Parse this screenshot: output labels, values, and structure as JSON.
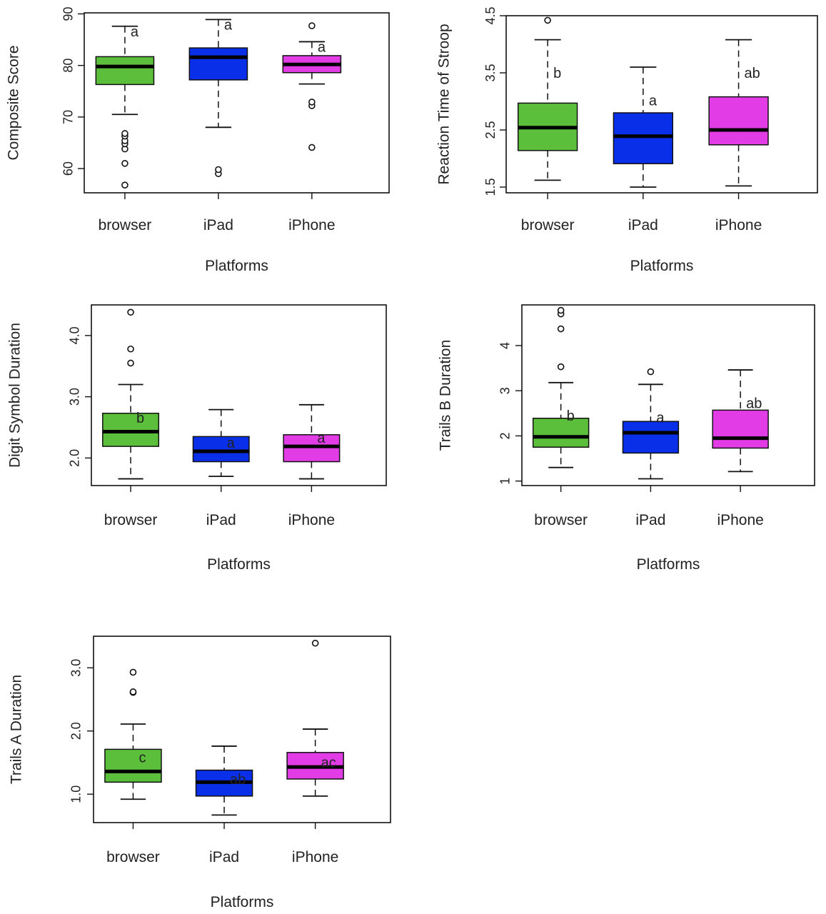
{
  "figure": {
    "colors": {
      "browser": "#5cbf3c",
      "iPad": "#0a2fe8",
      "iPhone": "#e23ce6"
    }
  },
  "chart_data": [
    {
      "type": "box",
      "id": "composite",
      "xlabel": "Platforms",
      "ylabel": "Composite Score",
      "categories": [
        "browser",
        "iPad",
        "iPhone"
      ],
      "ylim": [
        55.3,
        90.2
      ],
      "yticks": [
        60,
        70,
        80,
        90
      ],
      "yticklabels": [
        "60",
        "70",
        "80",
        "90"
      ],
      "boxes": [
        {
          "whisker_low": 70.5,
          "q1": 76.3,
          "median": 79.8,
          "q3": 81.7,
          "whisker_high": 87.6,
          "outliers": [
            56.8,
            61.0,
            63.8,
            64.8,
            65.4,
            66.3,
            66.8
          ],
          "letter": "a"
        },
        {
          "whisker_low": 68.0,
          "q1": 77.2,
          "median": 81.6,
          "q3": 83.4,
          "whisker_high": 88.9,
          "outliers": [
            59.0,
            59.8
          ],
          "letter": "a"
        },
        {
          "whisker_low": 76.4,
          "q1": 78.6,
          "median": 80.2,
          "q3": 81.9,
          "whisker_high": 84.6,
          "outliers": [
            64.1,
            72.2,
            72.9,
            87.7
          ],
          "letter": "a"
        }
      ],
      "grid": false,
      "legend": "none"
    },
    {
      "type": "box",
      "id": "stroop",
      "xlabel": "Platforms",
      "ylabel": "Reaction Time of Stroop",
      "categories": [
        "browser",
        "iPad",
        "iPhone"
      ],
      "ylim": [
        1.4,
        4.5
      ],
      "yticks": [
        1.5,
        2.5,
        3.5,
        4.5
      ],
      "yticklabels": [
        "1.5",
        "2.5",
        "3.5",
        "4.5"
      ],
      "boxes": [
        {
          "whisker_low": 1.62,
          "q1": 2.14,
          "median": 2.54,
          "q3": 2.97,
          "whisker_high": 4.08,
          "outliers": [
            4.42
          ],
          "letter": "b"
        },
        {
          "whisker_low": 1.5,
          "q1": 1.91,
          "median": 2.39,
          "q3": 2.8,
          "whisker_high": 3.6,
          "outliers": [],
          "letter": "a"
        },
        {
          "whisker_low": 1.52,
          "q1": 2.24,
          "median": 2.5,
          "q3": 3.08,
          "whisker_high": 4.08,
          "outliers": [],
          "letter": "ab"
        }
      ],
      "grid": false,
      "legend": "none"
    },
    {
      "type": "box",
      "id": "digit",
      "xlabel": "Platforms",
      "ylabel": "Digit Symbol Duration",
      "categories": [
        "browser",
        "iPad",
        "iPhone"
      ],
      "ylim": [
        1.55,
        4.5
      ],
      "yticks": [
        2.0,
        3.0,
        4.0
      ],
      "yticklabels": [
        "2.0",
        "3.0",
        "4.0"
      ],
      "boxes": [
        {
          "whisker_low": 1.66,
          "q1": 2.19,
          "median": 2.43,
          "q3": 2.73,
          "whisker_high": 3.2,
          "outliers": [
            3.55,
            3.78,
            4.38
          ],
          "letter": "b"
        },
        {
          "whisker_low": 1.7,
          "q1": 1.94,
          "median": 2.11,
          "q3": 2.35,
          "whisker_high": 2.79,
          "outliers": [],
          "letter": "a"
        },
        {
          "whisker_low": 1.66,
          "q1": 1.94,
          "median": 2.19,
          "q3": 2.38,
          "whisker_high": 2.87,
          "outliers": [],
          "letter": "a"
        }
      ],
      "grid": false,
      "legend": "none"
    },
    {
      "type": "box",
      "id": "trailsb",
      "xlabel": "Platforms",
      "ylabel": "Trails B Duration",
      "categories": [
        "browser",
        "iPad",
        "iPhone"
      ],
      "ylim": [
        0.9,
        4.9
      ],
      "yticks": [
        1,
        2,
        3,
        4
      ],
      "yticklabels": [
        "1",
        "2",
        "3",
        "4"
      ],
      "boxes": [
        {
          "whisker_low": 1.3,
          "q1": 1.75,
          "median": 1.98,
          "q3": 2.39,
          "whisker_high": 3.18,
          "outliers": [
            3.53,
            4.37,
            4.7,
            4.78
          ],
          "letter": "b"
        },
        {
          "whisker_low": 1.05,
          "q1": 1.62,
          "median": 2.07,
          "q3": 2.32,
          "whisker_high": 3.14,
          "outliers": [
            3.42
          ],
          "letter": "a"
        },
        {
          "whisker_low": 1.21,
          "q1": 1.73,
          "median": 1.95,
          "q3": 2.57,
          "whisker_high": 3.46,
          "outliers": [],
          "letter": "ab"
        }
      ],
      "grid": false,
      "legend": "none"
    },
    {
      "type": "box",
      "id": "trailsa",
      "xlabel": "Platforms",
      "ylabel": "Trails A Duration",
      "categories": [
        "browser",
        "iPad",
        "iPhone"
      ],
      "ylim": [
        0.55,
        3.5
      ],
      "yticks": [
        1.0,
        2.0,
        3.0
      ],
      "yticklabels": [
        "1.0",
        "2.0",
        "3.0"
      ],
      "boxes": [
        {
          "whisker_low": 0.92,
          "q1": 1.19,
          "median": 1.36,
          "q3": 1.71,
          "whisker_high": 2.11,
          "outliers": [
            2.61,
            2.62,
            2.93
          ],
          "letter": "c"
        },
        {
          "whisker_low": 0.67,
          "q1": 0.97,
          "median": 1.19,
          "q3": 1.38,
          "whisker_high": 1.76,
          "outliers": [],
          "letter": "ab"
        },
        {
          "whisker_low": 0.97,
          "q1": 1.24,
          "median": 1.43,
          "q3": 1.66,
          "whisker_high": 2.03,
          "outliers": [
            3.39
          ],
          "letter": "ac"
        }
      ],
      "grid": false,
      "legend": "none"
    }
  ]
}
